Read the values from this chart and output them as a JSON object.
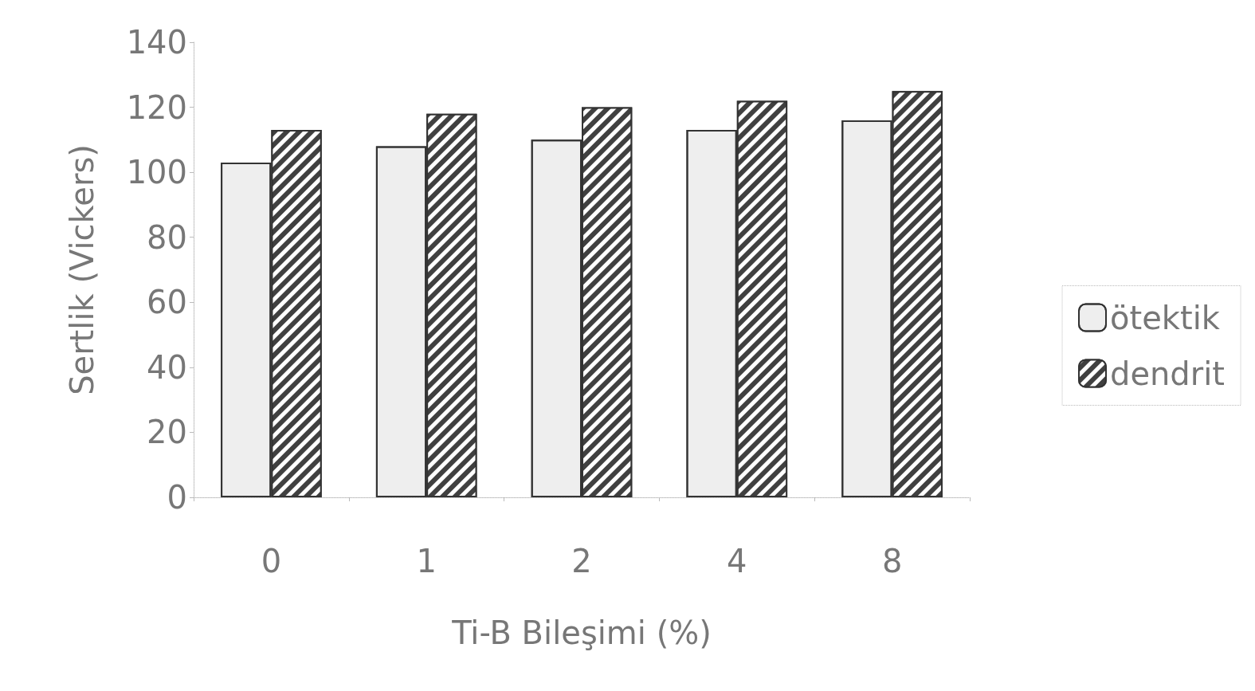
{
  "chart_data": {
    "type": "bar",
    "xlabel": "Ti-B Bileşimi (%)",
    "ylabel": "Sertlik (Vickers)",
    "categories": [
      "0",
      "1",
      "2",
      "4",
      "8"
    ],
    "series": [
      {
        "name": "ötektik",
        "color": "#eeeeee",
        "values": [
          103,
          108,
          110,
          113,
          116
        ]
      },
      {
        "name": "dendrit",
        "color": "#404040",
        "values": [
          113,
          118,
          120,
          122,
          125
        ]
      }
    ],
    "ylim": [
      0,
      140
    ],
    "yticks": [
      0,
      20,
      40,
      60,
      80,
      100,
      120,
      140
    ],
    "grid": false,
    "legend": "right"
  }
}
